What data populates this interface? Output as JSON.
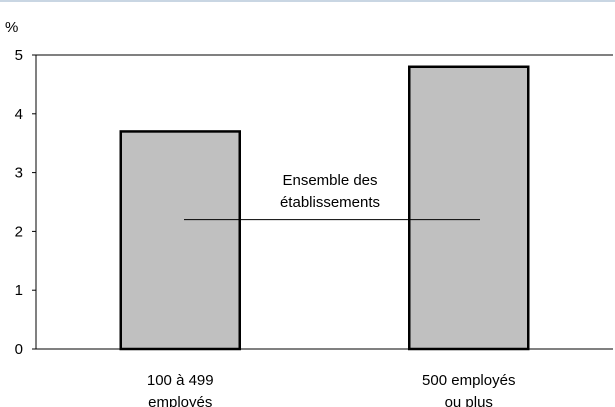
{
  "chart_data": {
    "type": "bar",
    "unit_label": "%",
    "categories": [
      [
        "100 à 499",
        "employés"
      ],
      [
        "500 employés",
        "ou plus"
      ]
    ],
    "values": [
      3.7,
      4.8
    ],
    "ylim": [
      0,
      5
    ],
    "yticks": [
      "0",
      "1",
      "2",
      "3",
      "4",
      "5"
    ],
    "reference_line": {
      "value": 2.2,
      "label": [
        "Ensemble des",
        "établissements"
      ]
    },
    "grid": false,
    "bar_color": "#c0c0c0",
    "bar_edge_color": "#000000"
  }
}
